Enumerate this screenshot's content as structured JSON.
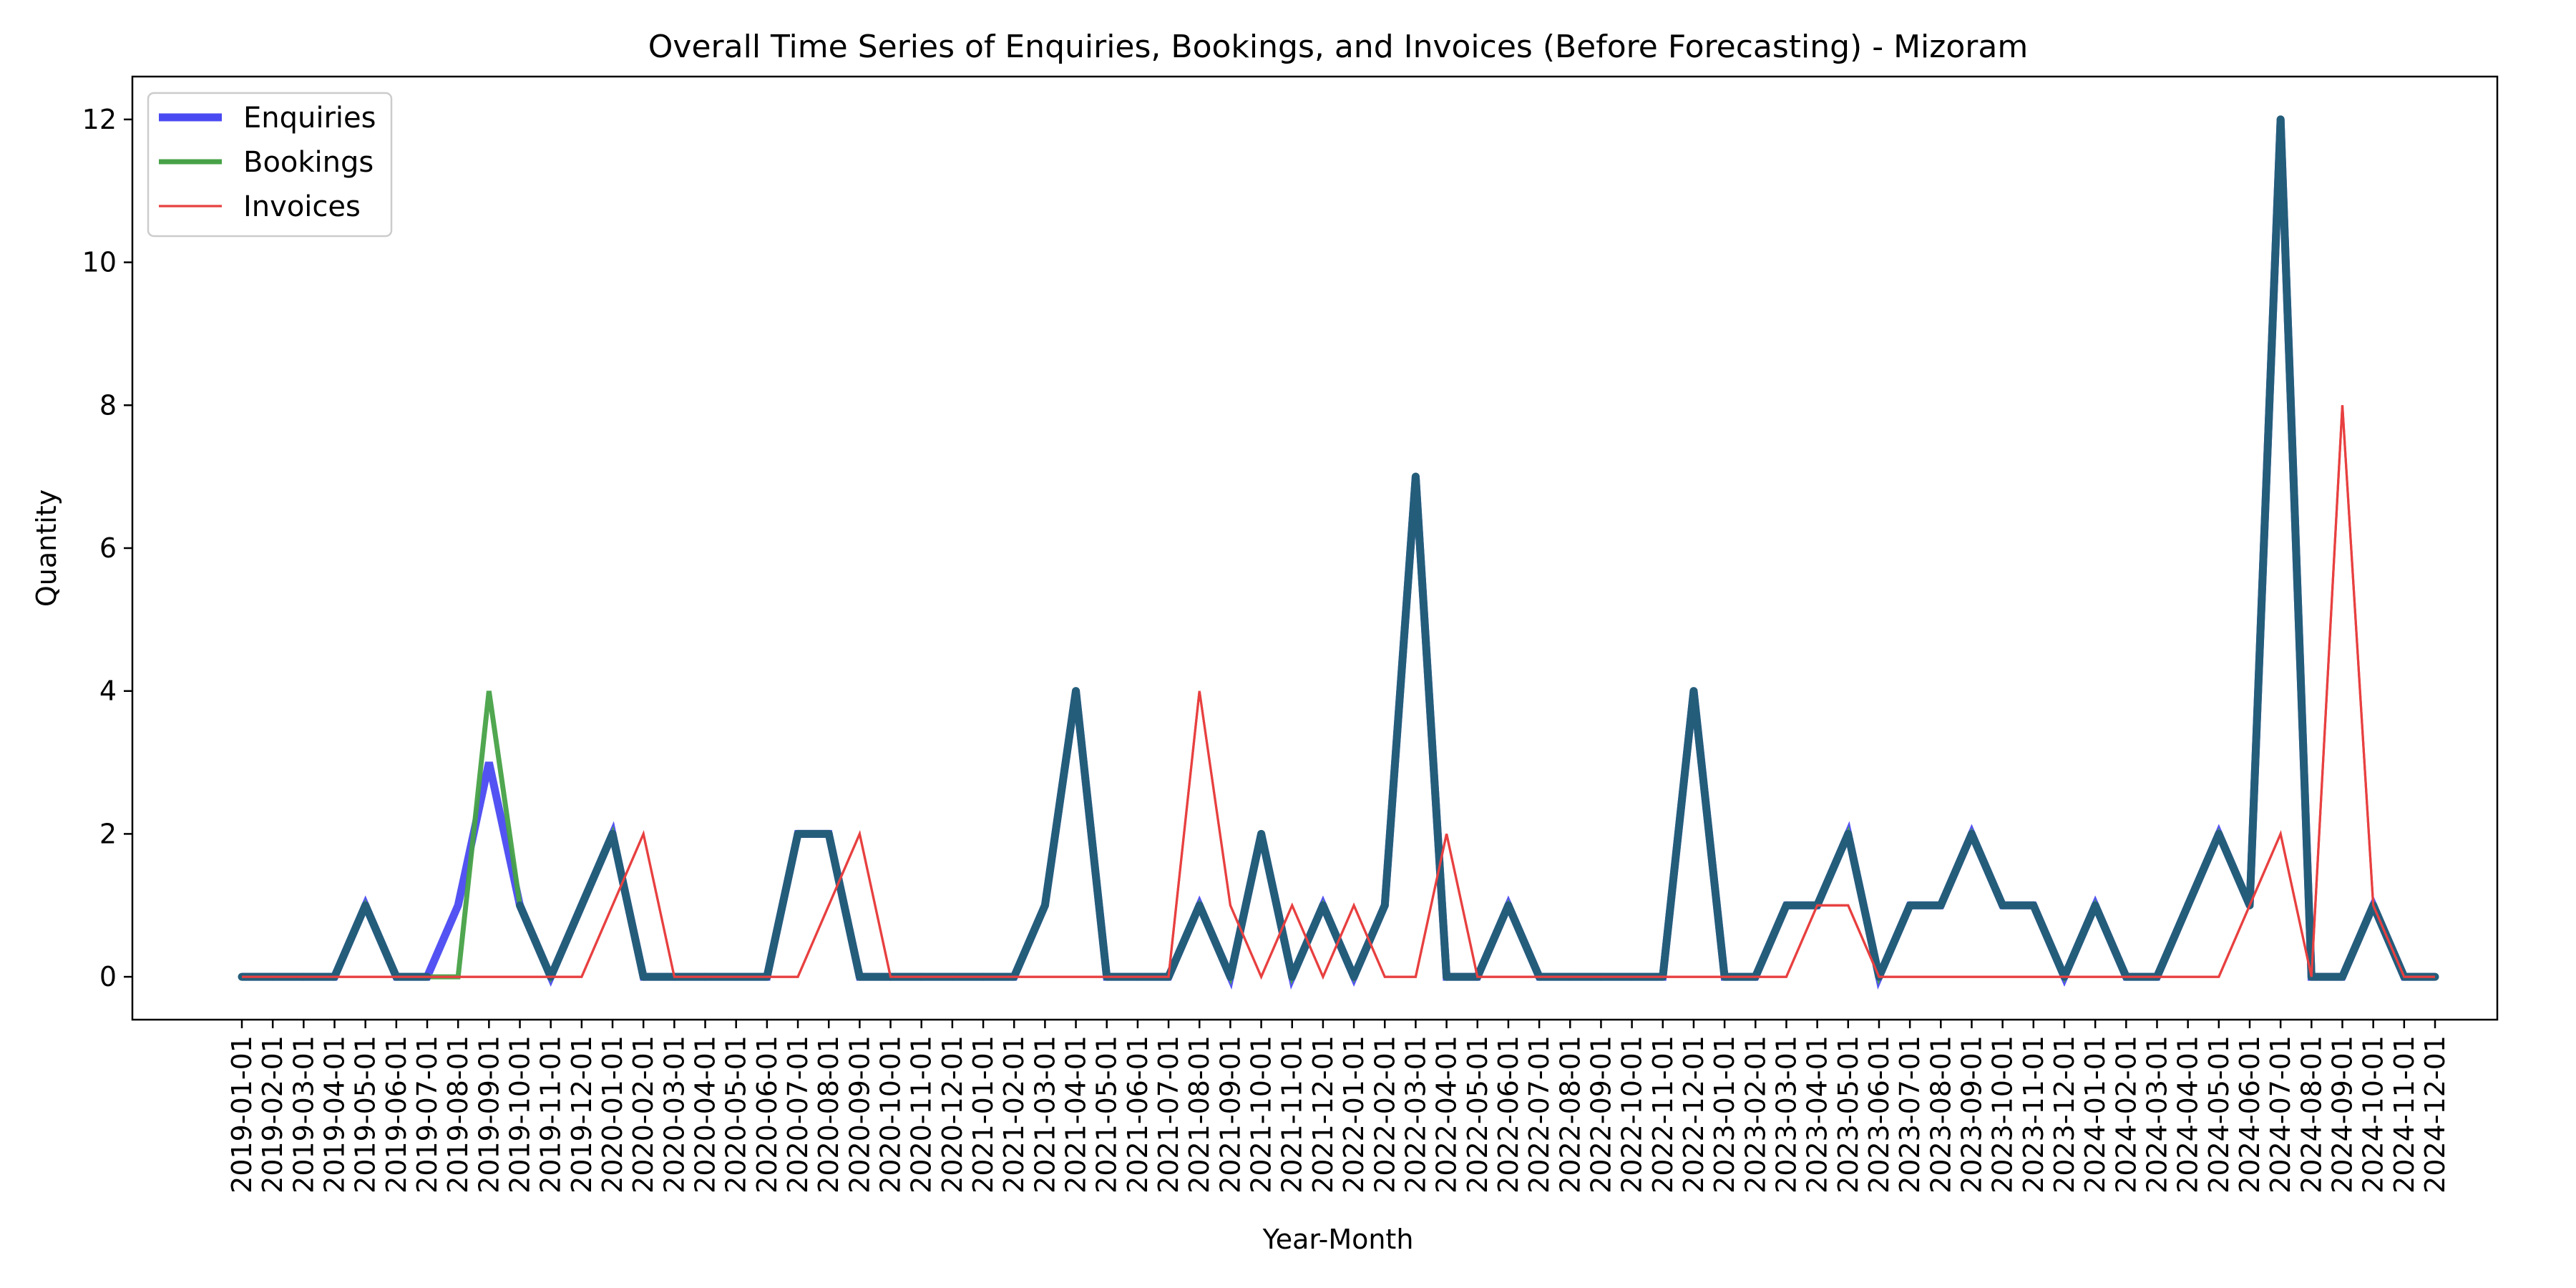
{
  "chart_data": {
    "type": "line",
    "title": "Overall Time Series of Enquiries, Bookings, and Invoices (Before Forecasting) - Mizoram",
    "xlabel": "Year-Month",
    "ylabel": "Quantity",
    "ylim": [
      -0.6,
      12.6
    ],
    "yticks": [
      0,
      2,
      4,
      6,
      8,
      10,
      12
    ],
    "grid": false,
    "legend_position": "top-left",
    "x": [
      "2019-01-01",
      "2019-02-01",
      "2019-03-01",
      "2019-04-01",
      "2019-05-01",
      "2019-06-01",
      "2019-07-01",
      "2019-08-01",
      "2019-09-01",
      "2019-10-01",
      "2019-11-01",
      "2019-12-01",
      "2020-01-01",
      "2020-02-01",
      "2020-03-01",
      "2020-04-01",
      "2020-05-01",
      "2020-06-01",
      "2020-07-01",
      "2020-08-01",
      "2020-09-01",
      "2020-10-01",
      "2020-11-01",
      "2020-12-01",
      "2021-01-01",
      "2021-02-01",
      "2021-03-01",
      "2021-04-01",
      "2021-05-01",
      "2021-06-01",
      "2021-07-01",
      "2021-08-01",
      "2021-09-01",
      "2021-10-01",
      "2021-11-01",
      "2021-12-01",
      "2022-01-01",
      "2022-02-01",
      "2022-03-01",
      "2022-04-01",
      "2022-05-01",
      "2022-06-01",
      "2022-07-01",
      "2022-08-01",
      "2022-09-01",
      "2022-10-01",
      "2022-11-01",
      "2022-12-01",
      "2023-01-01",
      "2023-02-01",
      "2023-03-01",
      "2023-04-01",
      "2023-05-01",
      "2023-06-01",
      "2023-07-01",
      "2023-08-01",
      "2023-09-01",
      "2023-10-01",
      "2023-11-01",
      "2023-12-01",
      "2024-01-01",
      "2024-02-01",
      "2024-03-01",
      "2024-04-01",
      "2024-05-01",
      "2024-06-01",
      "2024-07-01",
      "2024-08-01",
      "2024-09-01",
      "2024-10-01",
      "2024-11-01",
      "2024-12-01"
    ],
    "series": [
      {
        "name": "Enquiries",
        "color": "#4a4af2",
        "values": [
          0,
          0,
          0,
          0,
          1,
          0,
          0,
          1,
          3,
          1,
          0,
          1,
          2,
          0,
          0,
          0,
          0,
          0,
          2,
          2,
          0,
          0,
          0,
          0,
          0,
          0,
          1,
          4,
          0,
          0,
          0,
          1,
          0,
          2,
          0,
          1,
          0,
          1,
          7,
          0,
          0,
          1,
          0,
          0,
          0,
          0,
          0,
          4,
          0,
          0,
          1,
          1,
          2,
          0,
          1,
          1,
          2,
          1,
          1,
          0,
          1,
          0,
          0,
          1,
          2,
          1,
          12,
          0,
          0,
          1,
          0,
          0
        ]
      },
      {
        "name": "Bookings",
        "color": "#47a247",
        "values": [
          0,
          0,
          0,
          0,
          1,
          0,
          0,
          0,
          4,
          1,
          0,
          1,
          2,
          0,
          0,
          0,
          0,
          0,
          2,
          2,
          0,
          0,
          0,
          0,
          0,
          0,
          1,
          4,
          0,
          0,
          0,
          1,
          0,
          2,
          0,
          1,
          0,
          1,
          7,
          0,
          0,
          1,
          0,
          0,
          0,
          0,
          0,
          4,
          0,
          0,
          1,
          1,
          2,
          0,
          1,
          1,
          2,
          1,
          1,
          0,
          1,
          0,
          0,
          1,
          2,
          1,
          12,
          0,
          0,
          1,
          0,
          0
        ]
      },
      {
        "name": "Invoices",
        "color": "#e84040",
        "values": [
          0,
          0,
          0,
          0,
          0,
          0,
          0,
          0,
          0,
          0,
          0,
          0,
          1,
          2,
          0,
          0,
          0,
          0,
          0,
          1,
          2,
          0,
          0,
          0,
          0,
          0,
          0,
          0,
          0,
          0,
          0,
          4,
          1,
          0,
          1,
          0,
          1,
          0,
          0,
          2,
          0,
          0,
          0,
          0,
          0,
          0,
          0,
          0,
          0,
          0,
          0,
          1,
          1,
          0,
          0,
          0,
          0,
          0,
          0,
          0,
          0,
          0,
          0,
          0,
          0,
          1,
          2,
          0,
          8,
          1,
          0,
          0
        ]
      }
    ]
  }
}
